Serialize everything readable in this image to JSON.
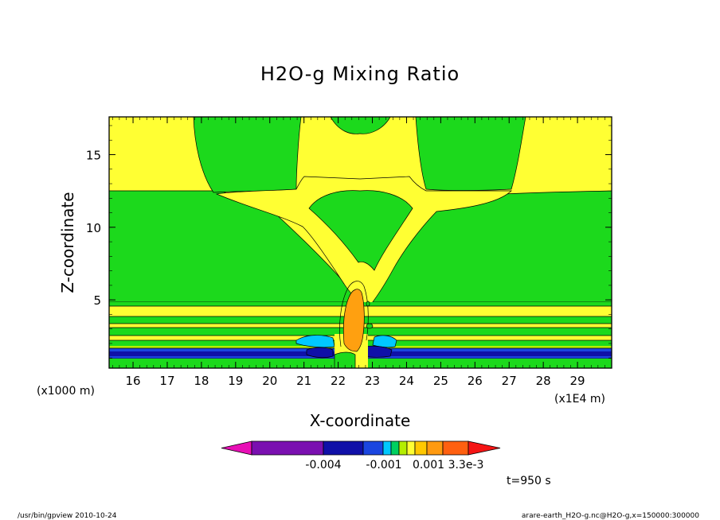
{
  "chart_data": {
    "type": "heatmap",
    "title": "H2O-g Mixing Ratio",
    "xlabel": "X-coordinate",
    "ylabel": "Z-coordinate",
    "x_unit_left": "(x1000 m)",
    "x_unit_right": "(x1E4 m)",
    "xlim": [
      15.3,
      30.0
    ],
    "ylim": [
      0.3,
      17.6
    ],
    "x_ticks": [
      "16",
      "17",
      "18",
      "19",
      "20",
      "21",
      "22",
      "23",
      "24",
      "25",
      "26",
      "27",
      "28",
      "29"
    ],
    "y_ticks": [
      "5",
      "10",
      "15"
    ],
    "time_label": "t=950 s",
    "colorbar": {
      "labels": [
        "-0.004",
        "-0.001",
        "0.001",
        "3.3e-3"
      ],
      "colors": [
        "#7a10b0",
        "#1010a8",
        "#1a46e0",
        "#00c8ff",
        "#00d060",
        "#b4ee00",
        "#ffff33",
        "#ffc800",
        "#ff9a10",
        "#ff6010"
      ],
      "under_color": "#e80fb6",
      "over_color": "#f51515"
    },
    "field_colors": {
      "yellow": "#ffff33",
      "green": "#1cd91c",
      "orange": "#ffa010",
      "cyan": "#00c8ff",
      "blue": "#1a46e0",
      "navy": "#1010a8",
      "light_green": "#b4ee00"
    }
  },
  "footer": {
    "left": "/usr/bin/gpview  2010-10-24",
    "right": "arare-earth_H2O-g.nc@H2O-g,x=150000:300000"
  }
}
